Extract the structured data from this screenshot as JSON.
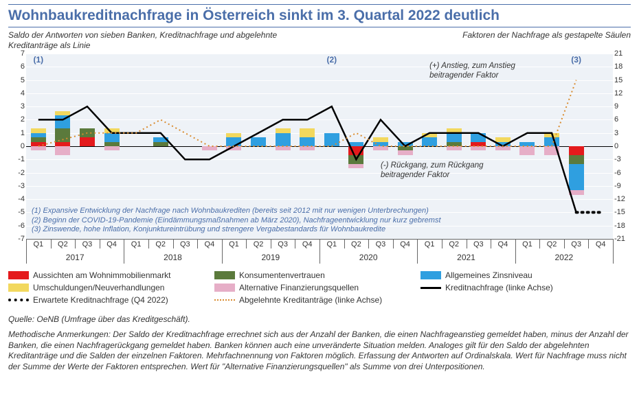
{
  "title": "Wohnbaukreditnachfrage in Österreich sinkt im 3. Quartal 2022 deutlich",
  "subtitle_left": "Saldo der Antworten von sieben Banken,\nKreditnachfrage und abgelehnte Kreditanträge als Linie",
  "subtitle_right": "Faktoren der Nachfrage als gestapelte Säulen",
  "chart": {
    "background_color": "#eef2f7",
    "grid_color": "#ffffff",
    "left_axis": {
      "min": -7,
      "max": 7,
      "step": 1
    },
    "right_axis": {
      "min": -21,
      "max": 21,
      "step": 3
    },
    "years": [
      "2017",
      "2018",
      "2019",
      "2020",
      "2021",
      "2022"
    ],
    "quarters": [
      "Q1",
      "Q2",
      "Q3",
      "Q4",
      "Q1",
      "Q2",
      "Q3",
      "Q4",
      "Q1",
      "Q2",
      "Q3",
      "Q4",
      "Q1",
      "Q2",
      "Q3",
      "Q4",
      "Q1",
      "Q2",
      "Q3",
      "Q4",
      "Q1",
      "Q2",
      "Q3",
      "Q4"
    ],
    "series_colors": {
      "aussichten": "#e41a1c",
      "konsumenten": "#5b7a3c",
      "zinsniveau": "#2f9fe0",
      "umschuldungen": "#f2d85e",
      "alternative": "#e6aec7",
      "kreditnachfrage_line": "#000000",
      "erwartete_line": "#000000",
      "abgelehnte_line": "#d98b2e"
    },
    "stacked_right": [
      {
        "q": "2017Q1",
        "aussichten": 1,
        "konsumenten": 1,
        "zinsniveau": 1,
        "umschuldungen": 1,
        "alternative": -1
      },
      {
        "q": "2017Q2",
        "aussichten": 1,
        "konsumenten": 3,
        "zinsniveau": 3,
        "umschuldungen": 1,
        "alternative": -2
      },
      {
        "q": "2017Q3",
        "aussichten": 2,
        "konsumenten": 2,
        "zinsniveau": 0,
        "umschuldungen": 0,
        "alternative": 0
      },
      {
        "q": "2017Q4",
        "aussichten": 0,
        "konsumenten": 1,
        "zinsniveau": 2,
        "umschuldungen": 1,
        "alternative": -1
      },
      {
        "q": "2018Q1",
        "aussichten": 0,
        "konsumenten": 0,
        "zinsniveau": 0,
        "umschuldungen": 0,
        "alternative": 0
      },
      {
        "q": "2018Q2",
        "aussichten": 0,
        "konsumenten": 1,
        "zinsniveau": 1,
        "umschuldungen": 0,
        "alternative": 0
      },
      {
        "q": "2018Q3",
        "aussichten": 0,
        "konsumenten": 0,
        "zinsniveau": 0,
        "umschuldungen": 0,
        "alternative": 0
      },
      {
        "q": "2018Q4",
        "aussichten": 0,
        "konsumenten": 0,
        "zinsniveau": 0,
        "umschuldungen": 0,
        "alternative": -1
      },
      {
        "q": "2019Q1",
        "aussichten": 0,
        "konsumenten": 0,
        "zinsniveau": 2,
        "umschuldungen": 1,
        "alternative": -1
      },
      {
        "q": "2019Q2",
        "aussichten": 0,
        "konsumenten": 0,
        "zinsniveau": 2,
        "umschuldungen": 0,
        "alternative": 0
      },
      {
        "q": "2019Q3",
        "aussichten": 0,
        "konsumenten": 0,
        "zinsniveau": 3,
        "umschuldungen": 1,
        "alternative": -1
      },
      {
        "q": "2019Q4",
        "aussichten": 0,
        "konsumenten": 0,
        "zinsniveau": 2,
        "umschuldungen": 2,
        "alternative": -1
      },
      {
        "q": "2020Q1",
        "aussichten": 0,
        "konsumenten": 0,
        "zinsniveau": 3,
        "umschuldungen": 0,
        "alternative": 0
      },
      {
        "q": "2020Q2",
        "aussichten": -2,
        "konsumenten": -2,
        "zinsniveau": 1,
        "umschuldungen": 0,
        "alternative": -1
      },
      {
        "q": "2020Q3",
        "aussichten": 0,
        "konsumenten": 0,
        "zinsniveau": 1,
        "umschuldungen": 1,
        "alternative": -1
      },
      {
        "q": "2020Q4",
        "aussichten": 0,
        "konsumenten": -1,
        "zinsniveau": 1,
        "umschuldungen": 0,
        "alternative": -1
      },
      {
        "q": "2021Q1",
        "aussichten": 0,
        "konsumenten": 0,
        "zinsniveau": 2,
        "umschuldungen": 1,
        "alternative": 0
      },
      {
        "q": "2021Q2",
        "aussichten": 0,
        "konsumenten": 1,
        "zinsniveau": 2,
        "umschuldungen": 1,
        "alternative": -1
      },
      {
        "q": "2021Q3",
        "aussichten": 1,
        "konsumenten": 0,
        "zinsniveau": 2,
        "umschuldungen": 0,
        "alternative": -1
      },
      {
        "q": "2021Q4",
        "aussichten": 0,
        "konsumenten": 0,
        "zinsniveau": 1,
        "umschuldungen": 1,
        "alternative": -1
      },
      {
        "q": "2022Q1",
        "aussichten": 0,
        "konsumenten": 0,
        "zinsniveau": 1,
        "umschuldungen": 0,
        "alternative": -2
      },
      {
        "q": "2022Q2",
        "aussichten": 0,
        "konsumenten": 0,
        "zinsniveau": 2,
        "umschuldungen": 1,
        "alternative": -2
      },
      {
        "q": "2022Q3",
        "aussichten": -2,
        "konsumenten": -2,
        "zinsniveau": -6,
        "umschuldungen": 0,
        "alternative": -1
      },
      {
        "q": "2022Q4",
        "aussichten": 0,
        "konsumenten": 0,
        "zinsniveau": 0,
        "umschuldungen": 0,
        "alternative": 0
      }
    ],
    "kreditnachfrage_left": [
      2,
      2,
      3,
      1,
      1,
      1,
      -1,
      -1,
      0,
      1,
      2,
      2,
      3,
      -1,
      2,
      0,
      1,
      1,
      1,
      0,
      1,
      1,
      -5
    ],
    "erwartete_left": {
      "from_index": 22,
      "to_index": 23,
      "values": [
        -5,
        -5
      ]
    },
    "abgelehnte_left": [
      0,
      0.5,
      1,
      1,
      1,
      2,
      1,
      0,
      0,
      0,
      0,
      0,
      0,
      1,
      0,
      0,
      0,
      0,
      0,
      0,
      0,
      0,
      5
    ],
    "markers": [
      {
        "label": "(1)",
        "x_index": 0
      },
      {
        "label": "(2)",
        "x_index": 12
      },
      {
        "label": "(3)",
        "x_index": 22
      }
    ],
    "annot_positive": "(+) Anstieg, zum Anstieg\nbeitragender Faktor",
    "annot_negative": "(-) Rückgang, zum Rückgang\nbeitragender Faktor",
    "footnotes": [
      "(1) Expansive Entwicklung der Nachfrage nach Wohnbaukrediten (bereits seit 2012 mit nur wenigen Unterbrechungen)",
      "(2) Beginn der COVID-19-Pandemie (Eindämmungsmaßnahmen ab März 2020), Nachfrageentwicklung nur kurz gebremst",
      "(3) Zinswende, hohe Inflation, Konjunktureintrübung und strengere Vergabestandards für Wohnbaukredite"
    ]
  },
  "legend": {
    "aussichten": "Aussichten am Wohnimmobilienmarkt",
    "konsumenten": "Konsumentenvertrauen",
    "zinsniveau": "Allgemeines Zinsniveau",
    "umschuldungen": "Umschuldungen/Neuverhandlungen",
    "alternative": "Alternative Finanzierungsquellen",
    "kreditnachfrage": "Kreditnachfrage (linke Achse)",
    "erwartete": "Erwartete Kreditnachfrage (Q4 2022)",
    "abgelehnte": "Abgelehnte Kreditanträge (linke Achse)"
  },
  "source": "Quelle: OeNB (Umfrage über das Kreditgeschäft).",
  "methods": "Methodische Anmerkungen: Der Saldo der Kreditnachfrage errechnet sich aus der Anzahl der Banken, die einen Nachfrageanstieg gemeldet haben, minus der Anzahl der Banken, die einen Nachfragerückgang gemeldet haben. Banken können auch eine unveränderte Situation melden. Analoges gilt für den Saldo der abgelehnten Kreditanträge und die Salden der einzelnen Faktoren. Mehrfachnennung von Faktoren möglich. Erfassung der Antworten auf Ordinalskala. Wert für Nachfrage muss nicht der Summe der Werte der Faktoren entsprechen. Wert für \"Alternative Finanzierungsquellen\" als Summe von drei Unterpositionen."
}
